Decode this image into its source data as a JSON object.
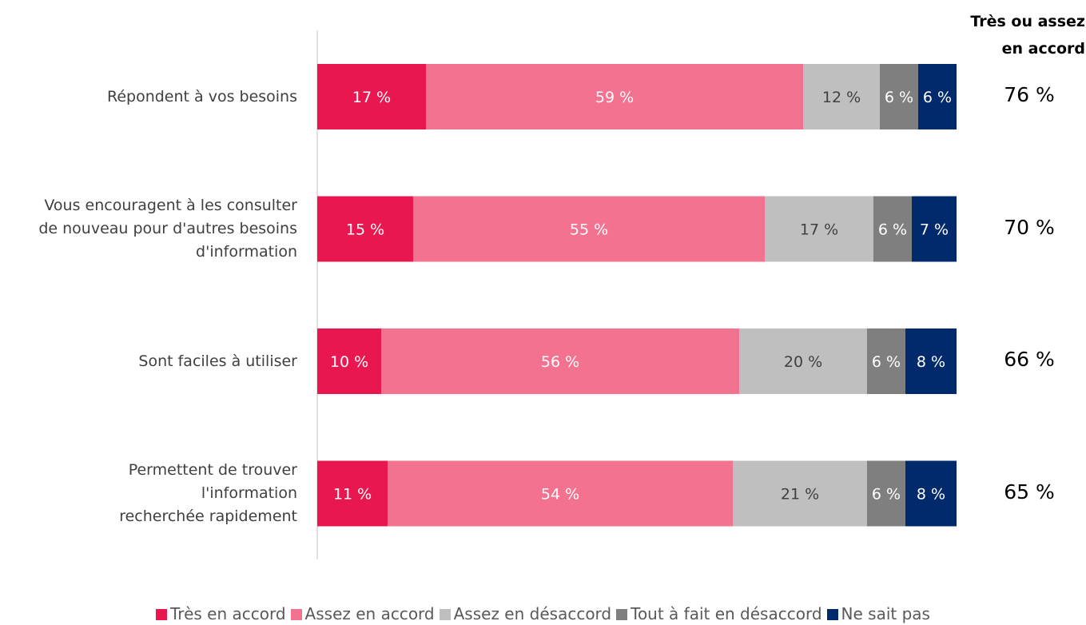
{
  "chart_data": {
    "type": "bar",
    "orientation": "horizontal",
    "stacked": true,
    "categories": [
      "Répondent à vos besoins",
      "Vous encouragent à les consulter\nde nouveau pour d'autres besoins\nd'information",
      "Sont faciles à utiliser",
      "Permettent de trouver\nl'information\nrecherchée rapidement"
    ],
    "series": [
      {
        "name": "Très en accord",
        "color": "#e8174f",
        "values": [
          17,
          15,
          10,
          11
        ],
        "labels": [
          "17 %",
          "15 %",
          "10 %",
          "11 %"
        ],
        "label_color": "#ffffff"
      },
      {
        "name": "Assez en accord",
        "color": "#f2728f",
        "values": [
          59,
          55,
          56,
          54
        ],
        "labels": [
          "59 %",
          "55 %",
          "56 %",
          "54 %"
        ],
        "label_color": "#ffffff"
      },
      {
        "name": "Assez en désaccord",
        "color": "#bfbfbf",
        "values": [
          12,
          17,
          20,
          21
        ],
        "labels": [
          "12 %",
          "17 %",
          "20 %",
          "21 %"
        ],
        "label_color": "#404040"
      },
      {
        "name": "Tout à fait en désaccord",
        "color": "#7f7f7f",
        "values": [
          6,
          6,
          6,
          6
        ],
        "labels": [
          "6 %",
          "6 %",
          "6 %",
          "6 %"
        ],
        "label_color": "#ffffff"
      },
      {
        "name": "Ne sait pas",
        "color": "#002a6c",
        "values": [
          6,
          7,
          8,
          8
        ],
        "labels": [
          "6 %",
          "7 %",
          "8 %",
          "8 %"
        ],
        "label_color": "#ffffff"
      }
    ],
    "totals": {
      "header": "Très ou assez\nen accord",
      "values": [
        "76 %",
        "70 %",
        "66 %",
        "65 %"
      ]
    },
    "legend_position": "bottom",
    "grid": false
  }
}
